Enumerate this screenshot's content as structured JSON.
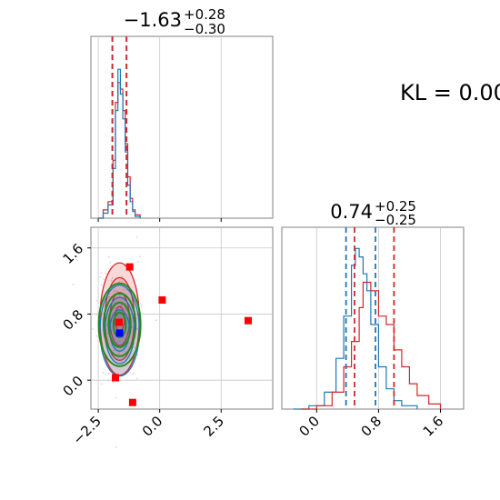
{
  "annotation": "KL = 0.00",
  "colors": {
    "red": "#d62728",
    "blue": "#1f77b4",
    "green": "#228b22",
    "marker_red": "#ff0000",
    "marker_blue": "#0000ff",
    "grid": "#c8c8c8",
    "axes": "#808080"
  },
  "chart_data": [
    {
      "type": "histogram",
      "panel": "marginal-x",
      "title": {
        "median": "−1.63",
        "plus": "+0.28",
        "minus": "−0.30"
      },
      "xlim": [
        -2.8,
        4.6
      ],
      "grid": true,
      "quantile_lines": {
        "blue": [
          -1.92,
          -1.35
        ],
        "red": [
          -1.93,
          -1.35
        ]
      },
      "series": [
        {
          "color": "red",
          "x": [
            -2.5,
            -2.3,
            -2.1,
            -1.9,
            -1.8,
            -1.7,
            -1.6,
            -1.5,
            -1.4,
            -1.3,
            -1.2,
            -1.1,
            -1.0,
            -0.8
          ],
          "y": [
            0.0,
            0.05,
            0.1,
            0.35,
            0.7,
            0.82,
            0.78,
            0.65,
            0.45,
            0.25,
            0.12,
            0.05,
            0.02,
            0.0
          ]
        },
        {
          "color": "blue",
          "x": [
            -2.5,
            -2.3,
            -2.1,
            -1.9,
            -1.8,
            -1.7,
            -1.6,
            -1.5,
            -1.4,
            -1.3,
            -1.2,
            -1.1,
            -1.0,
            -0.8
          ],
          "y": [
            0.0,
            0.03,
            0.08,
            0.3,
            0.65,
            0.9,
            0.75,
            0.6,
            0.4,
            0.2,
            0.1,
            0.04,
            0.01,
            0.0
          ]
        }
      ]
    },
    {
      "type": "scatter",
      "panel": "joint",
      "xlim": [
        -2.8,
        4.6
      ],
      "ylim": [
        -0.35,
        1.85
      ],
      "x_ticks": [
        "−2.5",
        "0.0",
        "2.5"
      ],
      "x_tick_values": [
        -2.5,
        0.0,
        2.5
      ],
      "y_ticks": [
        "0.0",
        "0.8",
        "1.6"
      ],
      "y_tick_values": [
        0.0,
        0.8,
        1.6
      ],
      "grid": true,
      "red_markers": [
        {
          "x": -1.22,
          "y": 1.37
        },
        {
          "x": 0.1,
          "y": 0.97
        },
        {
          "x": 3.6,
          "y": 0.72
        },
        {
          "x": -1.8,
          "y": 0.03
        },
        {
          "x": -1.1,
          "y": -0.27
        },
        {
          "x": -1.65,
          "y": 0.7
        }
      ],
      "blue_markers": [
        {
          "x": -1.63,
          "y": 0.57
        }
      ],
      "contours": [
        {
          "color": "red",
          "center": [
            -1.63,
            0.74
          ],
          "radii": [
            [
              0.8,
              0.68
            ],
            [
              0.6,
              0.5
            ],
            [
              0.4,
              0.32
            ],
            [
              0.2,
              0.15
            ]
          ]
        },
        {
          "color": "blue",
          "center": [
            -1.63,
            0.6
          ],
          "radii": [
            [
              0.8,
              0.55
            ],
            [
              0.6,
              0.4
            ],
            [
              0.4,
              0.25
            ]
          ]
        },
        {
          "color": "green",
          "center": [
            -1.63,
            0.67
          ],
          "radii": [
            [
              0.85,
              0.5
            ],
            [
              0.65,
              0.38
            ],
            [
              0.45,
              0.27
            ],
            [
              0.25,
              0.15
            ]
          ]
        }
      ]
    },
    {
      "type": "histogram",
      "panel": "marginal-y",
      "title": {
        "median": "0.74",
        "plus": "+0.25",
        "minus": "−0.25"
      },
      "xlim": [
        -0.45,
        1.9
      ],
      "x_ticks": [
        "0.0",
        "0.8",
        "1.6"
      ],
      "x_tick_values": [
        0.0,
        0.8,
        1.6
      ],
      "grid": true,
      "quantile_lines": {
        "blue": [
          0.38,
          0.76
        ],
        "red": [
          0.49,
          1.0
        ]
      },
      "series": [
        {
          "color": "blue",
          "x": [
            -0.3,
            -0.1,
            0.1,
            0.25,
            0.35,
            0.45,
            0.5,
            0.55,
            0.6,
            0.65,
            0.7,
            0.8,
            0.9,
            1.0,
            1.1,
            1.3
          ],
          "y": [
            0.0,
            0.02,
            0.1,
            0.3,
            0.55,
            0.85,
            0.95,
            0.9,
            0.8,
            0.7,
            0.5,
            0.25,
            0.12,
            0.05,
            0.02,
            0.0
          ]
        },
        {
          "color": "red",
          "x": [
            -0.2,
            0.0,
            0.2,
            0.35,
            0.45,
            0.55,
            0.6,
            0.7,
            0.8,
            0.9,
            1.0,
            1.1,
            1.2,
            1.3,
            1.45,
            1.6
          ],
          "y": [
            0.0,
            0.02,
            0.1,
            0.25,
            0.4,
            0.6,
            0.75,
            0.7,
            0.55,
            0.5,
            0.35,
            0.25,
            0.15,
            0.08,
            0.03,
            0.0
          ]
        }
      ]
    }
  ]
}
